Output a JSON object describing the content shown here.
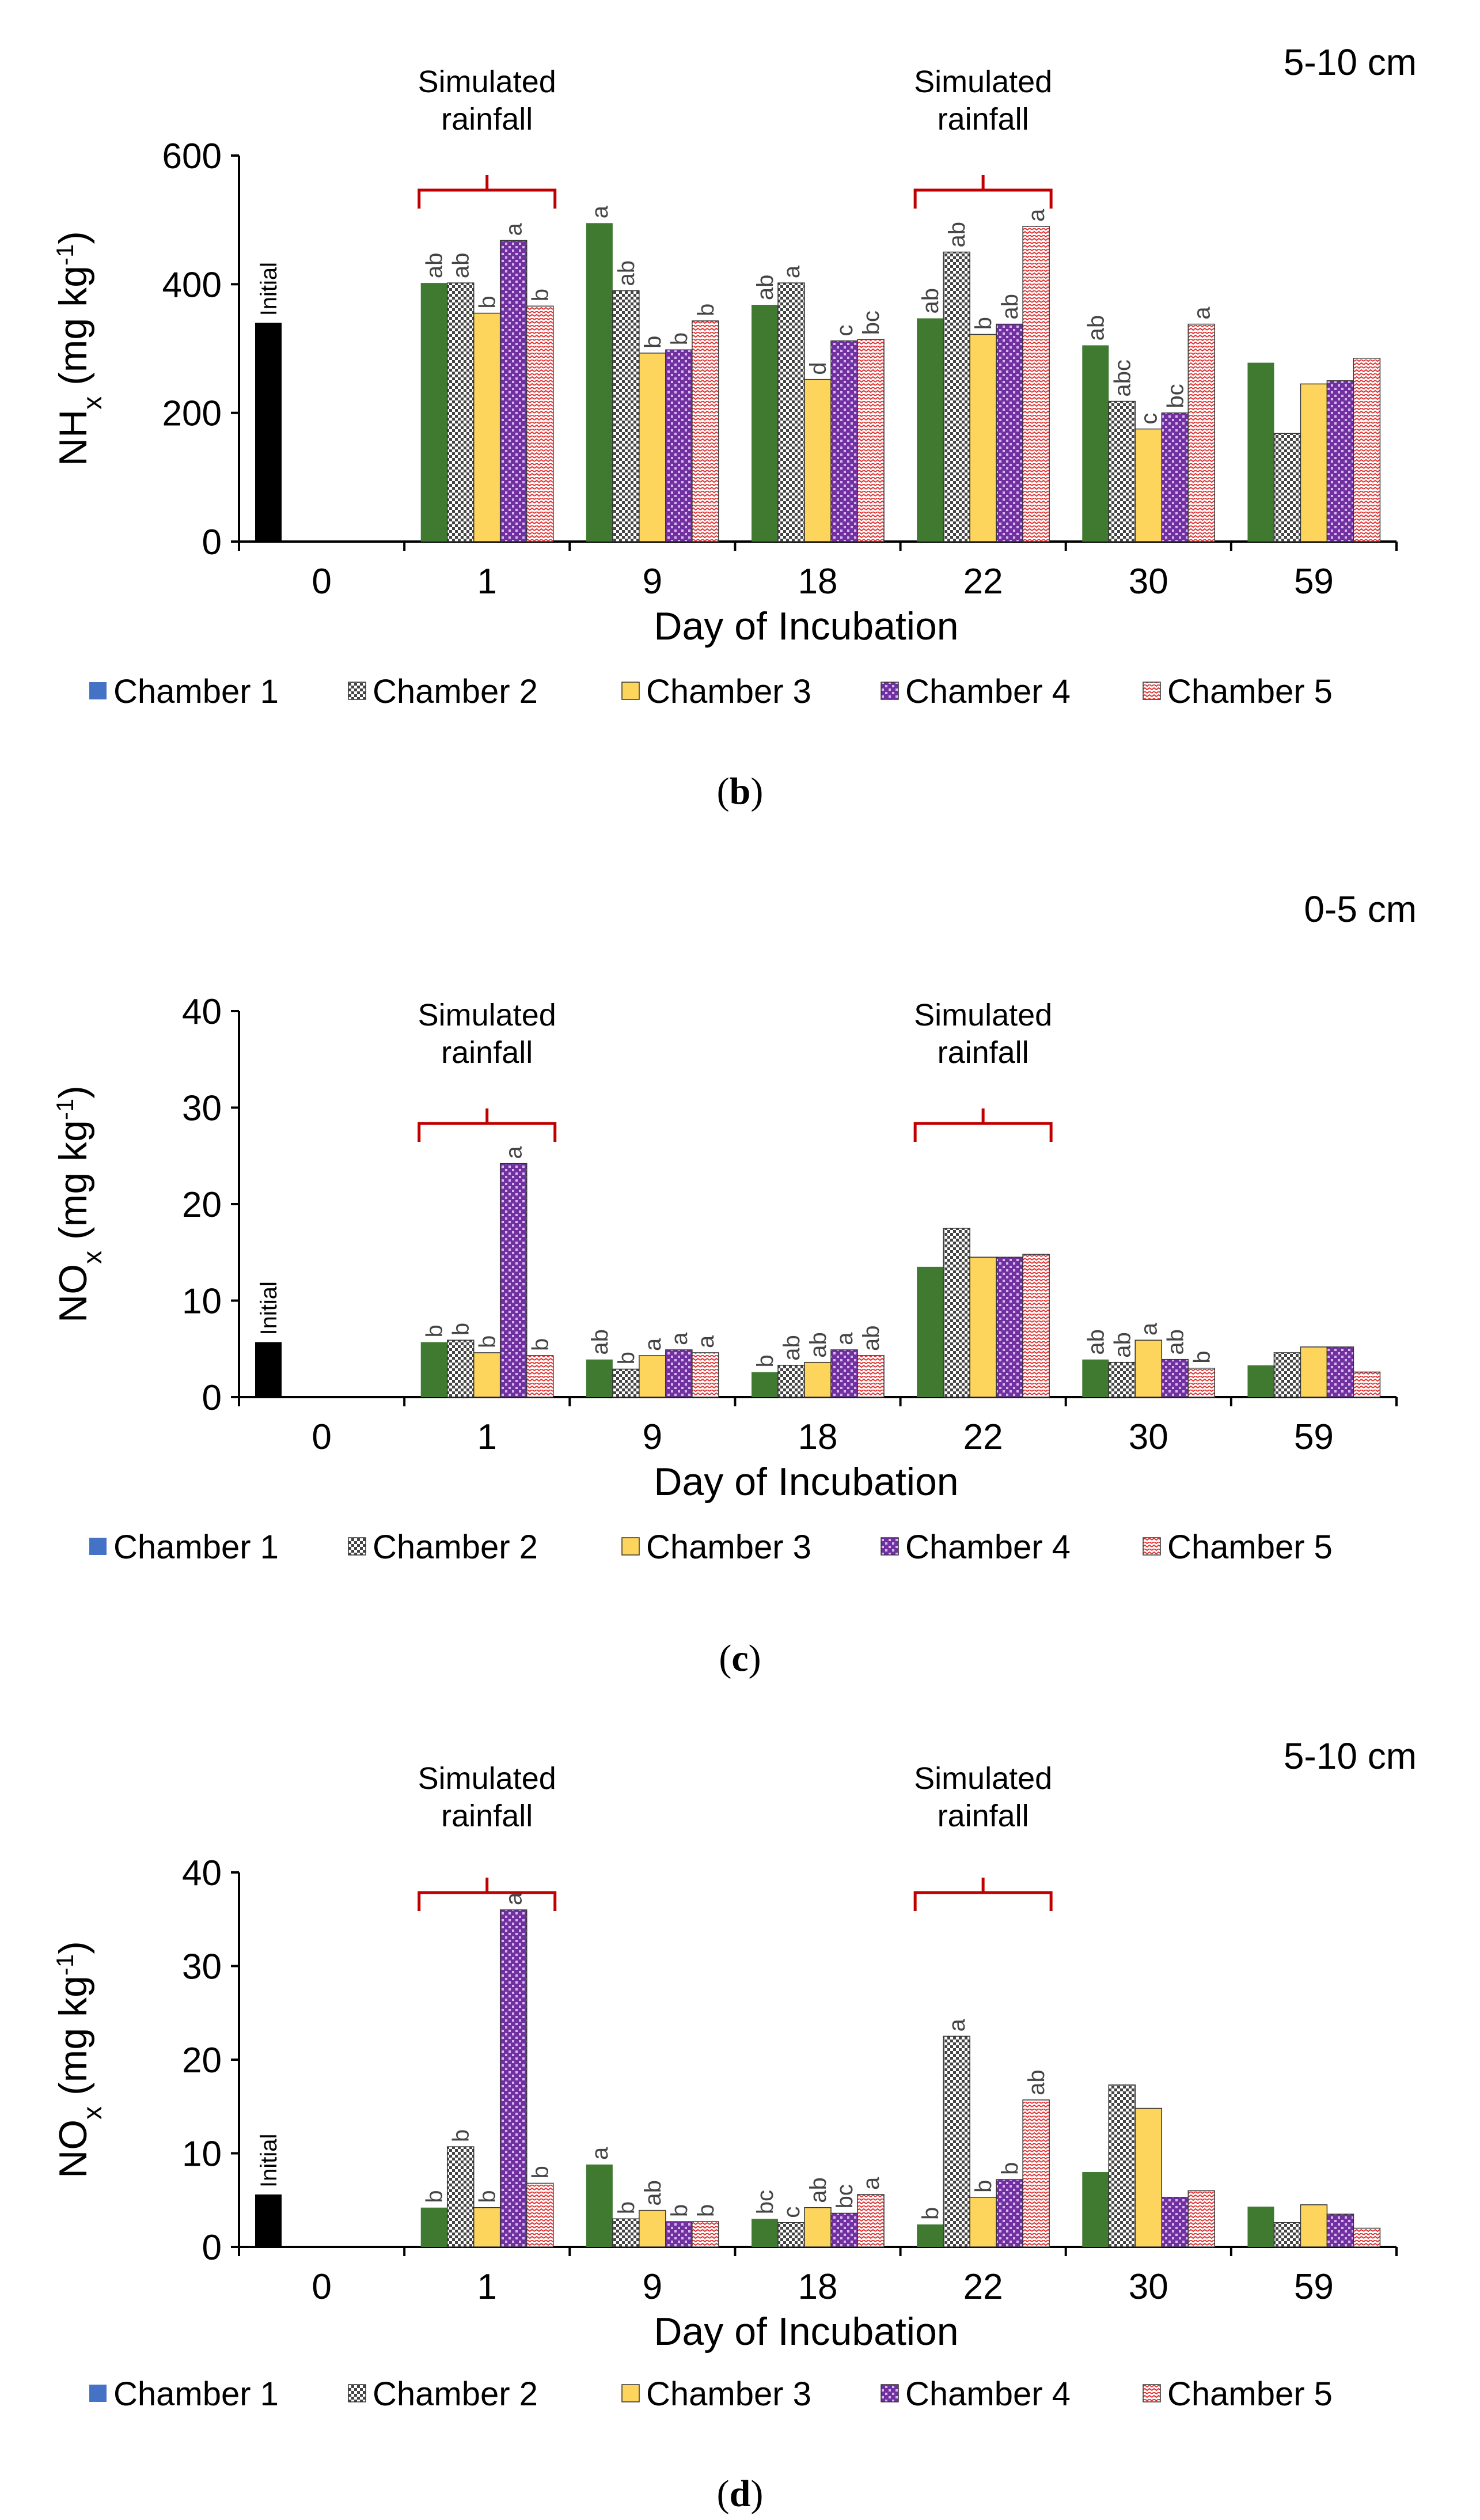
{
  "chart_data": [
    {
      "type": "bar",
      "panel_label": "b",
      "depth_label": "5-10 cm",
      "ylabel_main": "NH",
      "ylabel_sub": "x",
      "ylabel_unit_pre": " (mg kg",
      "ylabel_unit_sup": "-1",
      "ylabel_unit_post": ")",
      "xlabel": "Day of Incubation",
      "ylim": [
        0,
        600
      ],
      "yticks": [
        0,
        200,
        400,
        600
      ],
      "categories": [
        "0",
        "1",
        "9",
        "18",
        "22",
        "30",
        "59"
      ],
      "initial": {
        "label": "Initial",
        "value": 340
      },
      "series": [
        {
          "name": "Chamber 1",
          "values": [
            null,
            402,
            495,
            368,
            347,
            305,
            278
          ],
          "letters": [
            "",
            "ab",
            "a",
            "ab",
            "ab",
            "ab",
            ""
          ]
        },
        {
          "name": "Chamber 2",
          "values": [
            null,
            402,
            390,
            402,
            450,
            218,
            168
          ],
          "letters": [
            "",
            "ab",
            "ab",
            "a",
            "ab",
            "abc",
            ""
          ]
        },
        {
          "name": "Chamber 3",
          "values": [
            null,
            355,
            293,
            252,
            322,
            175,
            245
          ],
          "letters": [
            "",
            "b",
            "b",
            "d",
            "b",
            "c",
            ""
          ]
        },
        {
          "name": "Chamber 4",
          "values": [
            null,
            468,
            298,
            312,
            338,
            200,
            250
          ],
          "letters": [
            "",
            "a",
            "b",
            "c",
            "ab",
            "bc",
            ""
          ]
        },
        {
          "name": "Chamber 5",
          "values": [
            null,
            366,
            343,
            314,
            490,
            338,
            285
          ],
          "letters": [
            "",
            "b",
            "b",
            "bc",
            "a",
            "a",
            ""
          ]
        }
      ],
      "annotations": [
        {
          "text_line1": "Simulated",
          "text_line2": "rainfall",
          "span": [
            "1",
            "1"
          ]
        },
        {
          "text_line1": "Simulated",
          "text_line2": "rainfall",
          "span": [
            "22",
            "22"
          ]
        }
      ],
      "legend": [
        "Chamber 1",
        "Chamber 2",
        "Chamber 3",
        "Chamber 4",
        "Chamber 5"
      ]
    },
    {
      "type": "bar",
      "panel_label": "c",
      "depth_label": "0-5 cm",
      "ylabel_main": "NO",
      "ylabel_sub": "x",
      "ylabel_unit_pre": " (mg kg",
      "ylabel_unit_sup": "-1",
      "ylabel_unit_post": ")",
      "xlabel": "Day of Incubation",
      "ylim": [
        0,
        40
      ],
      "yticks": [
        0,
        10,
        20,
        30,
        40
      ],
      "categories": [
        "0",
        "1",
        "9",
        "18",
        "22",
        "30",
        "59"
      ],
      "initial": {
        "label": "Initial",
        "value": 5.7
      },
      "series": [
        {
          "name": "Chamber 1",
          "values": [
            null,
            5.7,
            3.9,
            2.6,
            13.5,
            3.9,
            3.3
          ],
          "letters": [
            "",
            "b",
            "ab",
            "b",
            "",
            "ab",
            ""
          ]
        },
        {
          "name": "Chamber 2",
          "values": [
            null,
            5.9,
            2.9,
            3.3,
            17.5,
            3.6,
            4.6
          ],
          "letters": [
            "",
            "b",
            "b",
            "ab",
            "",
            "ab",
            ""
          ]
        },
        {
          "name": "Chamber 3",
          "values": [
            null,
            4.6,
            4.3,
            3.6,
            14.5,
            5.9,
            5.2
          ],
          "letters": [
            "",
            "b",
            "a",
            "ab",
            "",
            "a",
            ""
          ]
        },
        {
          "name": "Chamber 4",
          "values": [
            null,
            24.2,
            4.9,
            4.9,
            14.5,
            3.9,
            5.2
          ],
          "letters": [
            "",
            "a",
            "a",
            "a",
            "",
            "ab",
            ""
          ]
        },
        {
          "name": "Chamber 5",
          "values": [
            null,
            4.3,
            4.6,
            4.3,
            14.8,
            3.0,
            2.6
          ],
          "letters": [
            "",
            "b",
            "a",
            "ab",
            "",
            "b",
            ""
          ]
        }
      ],
      "annotations": [
        {
          "text_line1": "Simulated",
          "text_line2": "rainfall",
          "span": [
            "1",
            "1"
          ]
        },
        {
          "text_line1": "Simulated",
          "text_line2": "rainfall",
          "span": [
            "22",
            "22"
          ]
        }
      ],
      "legend": [
        "Chamber 1",
        "Chamber 2",
        "Chamber 3",
        "Chamber 4",
        "Chamber 5"
      ]
    },
    {
      "type": "bar",
      "panel_label": "d",
      "depth_label": "5-10 cm",
      "ylabel_main": "NO",
      "ylabel_sub": "x",
      "ylabel_unit_pre": " (mg kg",
      "ylabel_unit_sup": "-1",
      "ylabel_unit_post": ")",
      "xlabel": "Day of Incubation",
      "ylim": [
        0,
        40
      ],
      "yticks": [
        0,
        10,
        20,
        30,
        40
      ],
      "categories": [
        "0",
        "1",
        "9",
        "18",
        "22",
        "30",
        "59"
      ],
      "initial": {
        "label": "Initial",
        "value": 5.6
      },
      "series": [
        {
          "name": "Chamber 1",
          "values": [
            null,
            4.2,
            8.8,
            3.0,
            2.4,
            8.0,
            4.3
          ],
          "letters": [
            "",
            "b",
            "a",
            "bc",
            "b",
            "",
            ""
          ]
        },
        {
          "name": "Chamber 2",
          "values": [
            null,
            10.7,
            3.0,
            2.6,
            22.5,
            17.3,
            2.6
          ],
          "letters": [
            "",
            "b",
            "b",
            "c",
            "a",
            "",
            ""
          ]
        },
        {
          "name": "Chamber 3",
          "values": [
            null,
            4.2,
            3.9,
            4.2,
            5.3,
            14.8,
            4.5
          ],
          "letters": [
            "",
            "b",
            "ab",
            "ab",
            "b",
            "",
            ""
          ]
        },
        {
          "name": "Chamber 4",
          "values": [
            null,
            36.0,
            2.7,
            3.6,
            7.2,
            5.3,
            3.5
          ],
          "letters": [
            "",
            "a",
            "b",
            "bc",
            "b",
            "",
            ""
          ]
        },
        {
          "name": "Chamber 5",
          "values": [
            null,
            6.8,
            2.7,
            5.6,
            15.7,
            6.0,
            2.0
          ],
          "letters": [
            "",
            "b",
            "b",
            "a",
            "ab",
            "",
            ""
          ]
        }
      ],
      "annotations": [
        {
          "text_line1": "Simulated",
          "text_line2": "rainfall",
          "span": [
            "1",
            "1"
          ]
        },
        {
          "text_line1": "Simulated",
          "text_line2": "rainfall",
          "span": [
            "22",
            "22"
          ]
        }
      ],
      "legend": [
        "Chamber 1",
        "Chamber 2",
        "Chamber 3",
        "Chamber 4",
        "Chamber 5"
      ]
    }
  ],
  "colors": {
    "chamber1": "#3f7a30",
    "chamber2": "#ffffff",
    "chamber3": "#fdd45c",
    "chamber4": "#7030a0",
    "chamber5": "#ffffff",
    "chamber5_pattern": "#e03030",
    "chamber4_pattern": "#d8b8f0",
    "initial": "#000000",
    "rainfall_bracket": "#c00000",
    "legend_chamber1_marker": "#4472c4"
  }
}
